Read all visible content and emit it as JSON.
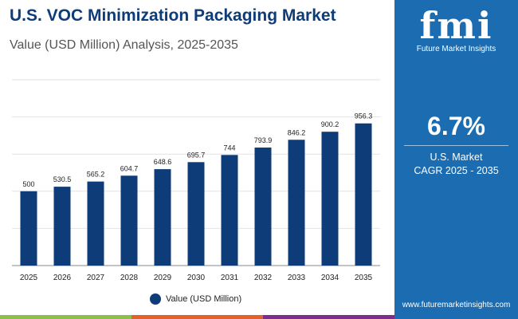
{
  "header": {
    "title": "U.S. VOC Minimization Packaging Market",
    "subtitle": "Value (USD Million) Analysis, 2025-2035"
  },
  "panel": {
    "logo_text": "fmi",
    "brand": "Future Market Insights",
    "cagr_value": "6.7%",
    "cagr_label_1": "U.S. Market",
    "cagr_label_2": "CAGR 2025 - 2035",
    "url": "www.futuremarketinsights.com",
    "color": "#1b6cb0"
  },
  "chart_data": {
    "type": "bar",
    "categories": [
      "2025",
      "2026",
      "2027",
      "2028",
      "2029",
      "2030",
      "2031",
      "2032",
      "2033",
      "2034",
      "2035"
    ],
    "series": [
      {
        "name": "Value (USD Million)",
        "values": [
          500,
          530.5,
          565.2,
          604.7,
          648.6,
          695.7,
          744,
          793.9,
          846.2,
          900.2,
          956.3
        ],
        "color": "#0d3c78"
      }
    ],
    "data_labels": [
      "500",
      "530.5",
      "565.2",
      "604.7",
      "648.6",
      "695.7",
      "744",
      "793.9",
      "846.2",
      "900.2",
      "956.3"
    ],
    "ylim": [
      0,
      1250
    ],
    "grid": true,
    "legend": "bottom"
  },
  "legend": {
    "label": "Value (USD Million)"
  },
  "stripes": [
    "#8cc04b",
    "#e2612a",
    "#7d2d8c",
    "#1b6cb0"
  ]
}
